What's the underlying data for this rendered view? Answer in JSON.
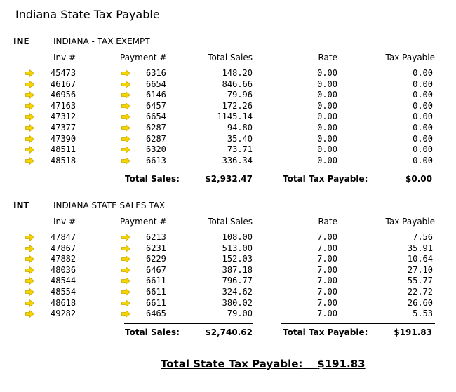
{
  "page": {
    "title": "Indiana State Tax Payable"
  },
  "columns": {
    "inv": "Inv #",
    "payment": "Payment #",
    "total_sales": "Total Sales",
    "rate": "Rate",
    "tax_payable": "Tax Payable"
  },
  "icons": {
    "row_arrow": "arrow-right-icon",
    "arrow_color": "#f5d400"
  },
  "sections": [
    {
      "code": "INE",
      "name": "INDIANA - TAX EXEMPT",
      "rows": [
        {
          "inv": "45473",
          "payment": "6316",
          "sales": "148.20",
          "rate": "0.00",
          "tax": "0.00"
        },
        {
          "inv": "46167",
          "payment": "6654",
          "sales": "846.66",
          "rate": "0.00",
          "tax": "0.00"
        },
        {
          "inv": "46956",
          "payment": "6146",
          "sales": "79.96",
          "rate": "0.00",
          "tax": "0.00"
        },
        {
          "inv": "47163",
          "payment": "6457",
          "sales": "172.26",
          "rate": "0.00",
          "tax": "0.00"
        },
        {
          "inv": "47312",
          "payment": "6654",
          "sales": "1145.14",
          "rate": "0.00",
          "tax": "0.00"
        },
        {
          "inv": "47377",
          "payment": "6287",
          "sales": "94.80",
          "rate": "0.00",
          "tax": "0.00"
        },
        {
          "inv": "47390",
          "payment": "6287",
          "sales": "35.40",
          "rate": "0.00",
          "tax": "0.00"
        },
        {
          "inv": "48511",
          "payment": "6320",
          "sales": "73.71",
          "rate": "0.00",
          "tax": "0.00"
        },
        {
          "inv": "48518",
          "payment": "6613",
          "sales": "336.34",
          "rate": "0.00",
          "tax": "0.00"
        }
      ],
      "totals": {
        "sales_label": "Total Sales:",
        "sales": "$2,932.47",
        "tax_label": "Total Tax Payable:",
        "tax": "$0.00"
      }
    },
    {
      "code": "INT",
      "name": "INDIANA STATE SALES TAX",
      "rows": [
        {
          "inv": "47847",
          "payment": "6213",
          "sales": "108.00",
          "rate": "7.00",
          "tax": "7.56"
        },
        {
          "inv": "47867",
          "payment": "6231",
          "sales": "513.00",
          "rate": "7.00",
          "tax": "35.91"
        },
        {
          "inv": "47882",
          "payment": "6229",
          "sales": "152.03",
          "rate": "7.00",
          "tax": "10.64"
        },
        {
          "inv": "48036",
          "payment": "6467",
          "sales": "387.18",
          "rate": "7.00",
          "tax": "27.10"
        },
        {
          "inv": "48544",
          "payment": "6611",
          "sales": "796.77",
          "rate": "7.00",
          "tax": "55.77"
        },
        {
          "inv": "48554",
          "payment": "6611",
          "sales": "324.62",
          "rate": "7.00",
          "tax": "22.72"
        },
        {
          "inv": "48618",
          "payment": "6611",
          "sales": "380.02",
          "rate": "7.00",
          "tax": "26.60"
        },
        {
          "inv": "49282",
          "payment": "6465",
          "sales": "79.00",
          "rate": "7.00",
          "tax": "5.53"
        }
      ],
      "totals": {
        "sales_label": "Total Sales:",
        "sales": "$2,740.62",
        "tax_label": "Total Tax Payable:",
        "tax": "$191.83"
      }
    }
  ],
  "grand_total": {
    "label": "Total State Tax Payable:",
    "value": "$191.83"
  }
}
